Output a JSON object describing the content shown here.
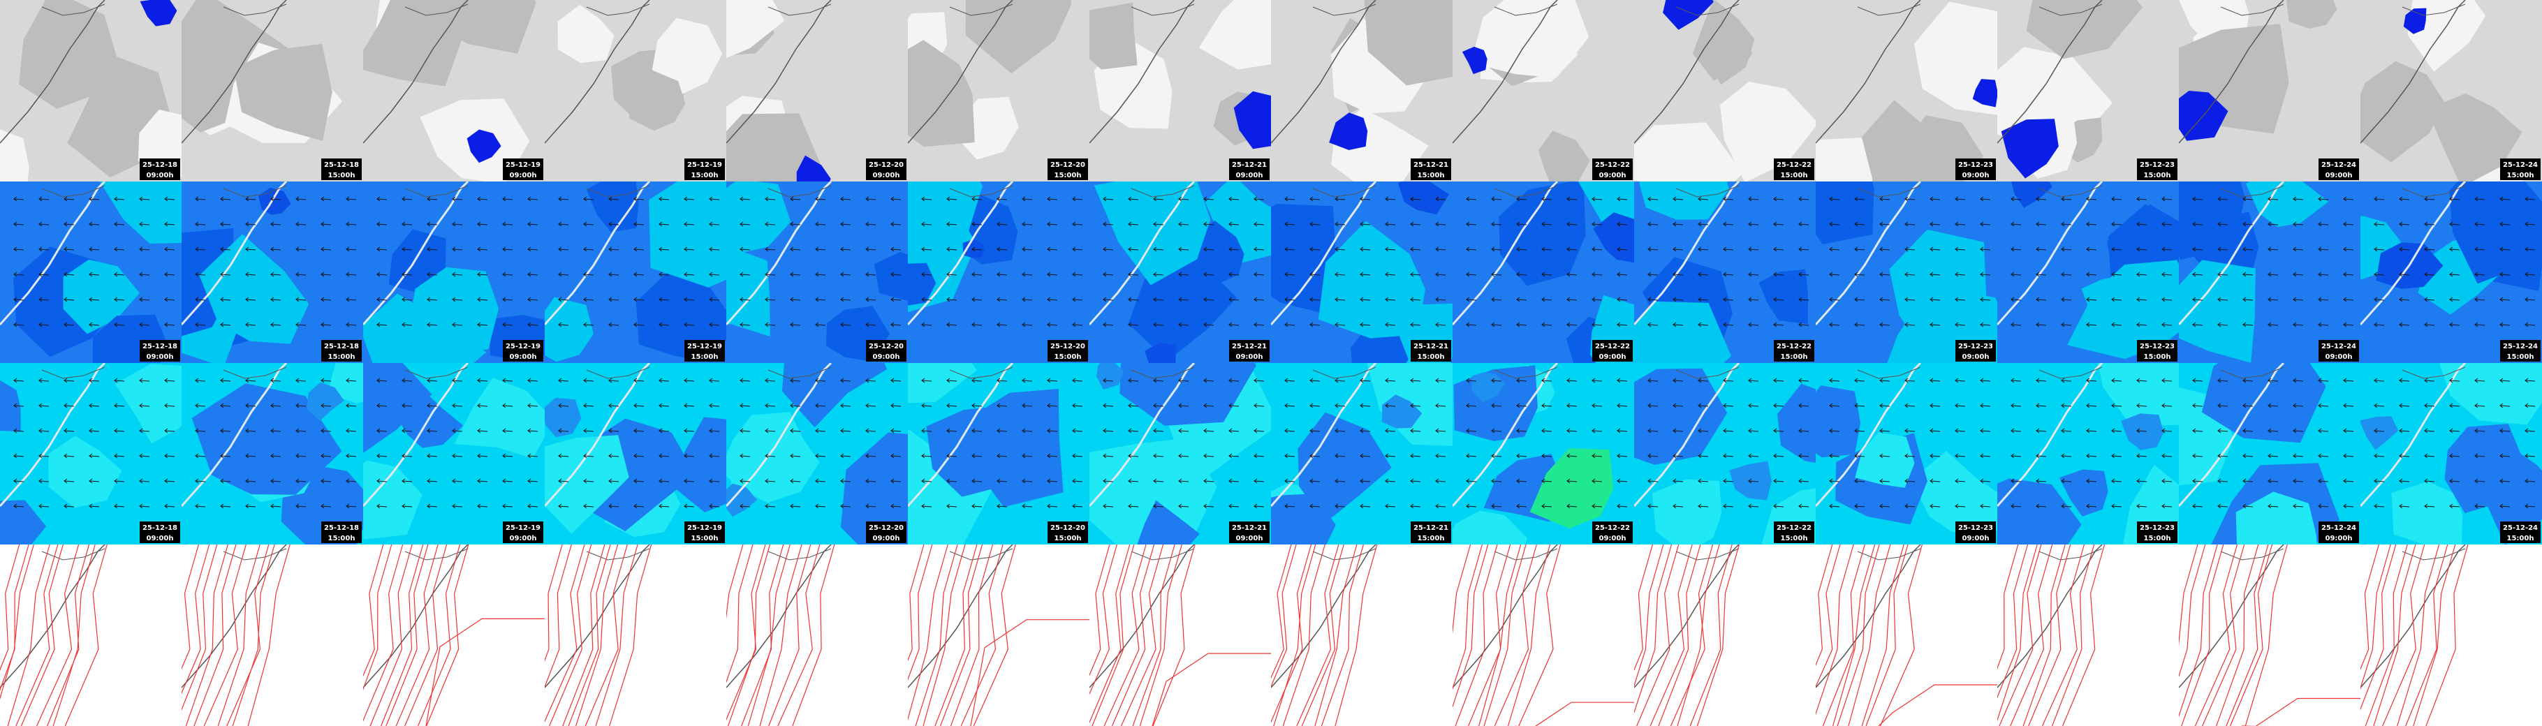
{
  "panels": [
    {
      "date": "25-12-18",
      "time": "09:00h"
    },
    {
      "date": "25-12-18",
      "time": "15:00h"
    },
    {
      "date": "25-12-19",
      "time": "09:00h"
    },
    {
      "date": "25-12-19",
      "time": "15:00h"
    },
    {
      "date": "25-12-20",
      "time": "09:00h"
    },
    {
      "date": "25-12-20",
      "time": "15:00h"
    },
    {
      "date": "25-12-21",
      "time": "09:00h"
    },
    {
      "date": "25-12-21",
      "time": "15:00h"
    },
    {
      "date": "25-12-22",
      "time": "09:00h"
    },
    {
      "date": "25-12-22",
      "time": "15:00h"
    },
    {
      "date": "25-12-23",
      "time": "09:00h"
    },
    {
      "date": "25-12-23",
      "time": "15:00h"
    },
    {
      "date": "25-12-24",
      "time": "09:00h"
    },
    {
      "date": "25-12-24",
      "time": "15:00h"
    }
  ]
}
